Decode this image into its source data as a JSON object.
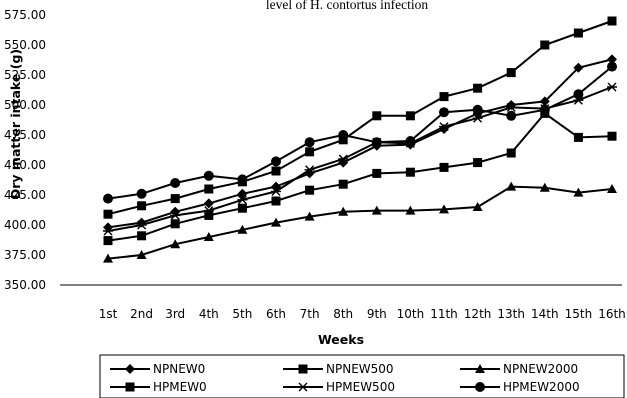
{
  "chart_data": {
    "type": "line",
    "title": "level of H. contortus infection",
    "xlabel": "Weeks",
    "ylabel": "Dry matter intake (g)",
    "ylim": [
      350,
      575
    ],
    "ytick_labels": [
      "350.00",
      "375.00",
      "400.00",
      "425.00",
      "450.00",
      "475.00",
      "500.00",
      "525.00",
      "550.00",
      "575.00"
    ],
    "categories": [
      "1st",
      "2nd",
      "3rd",
      "4th",
      "5th",
      "6th",
      "7th",
      "8th",
      "9th",
      "10th",
      "11th",
      "12th",
      "13th",
      "14th",
      "15th",
      "16th"
    ],
    "grid": false,
    "legend_position": "bottom",
    "series": [
      {
        "name": "NPNEW0",
        "marker": "diamond",
        "values": [
          398,
          402,
          411,
          418,
          426,
          432,
          443,
          452,
          466,
          467,
          480,
          493,
          500,
          503,
          531,
          538
        ]
      },
      {
        "name": "NPNEW500",
        "marker": "square",
        "values": [
          387,
          391,
          401,
          408,
          414,
          420,
          429,
          434,
          443,
          444,
          448,
          452,
          460,
          493,
          473,
          474
        ]
      },
      {
        "name": "NPNEW2000",
        "marker": "triangle",
        "values": [
          372,
          375,
          384,
          390,
          396,
          402,
          407,
          411,
          412,
          412,
          413,
          415,
          432,
          431,
          427,
          430
        ]
      },
      {
        "name": "HPMEW0",
        "marker": "square",
        "values": [
          409,
          416,
          422,
          430,
          436,
          445,
          461,
          471,
          491,
          491,
          507,
          514,
          527,
          550,
          560,
          570
        ]
      },
      {
        "name": "HPMEW500",
        "marker": "star",
        "values": [
          395,
          400,
          408,
          412,
          421,
          428,
          446,
          455,
          469,
          468,
          482,
          489,
          498,
          497,
          504,
          515
        ]
      },
      {
        "name": "HPMEW2000",
        "marker": "circle",
        "values": [
          422,
          426,
          435,
          441,
          438,
          453,
          469,
          475,
          469,
          470,
          494,
          496,
          491,
          496,
          509,
          532
        ]
      }
    ]
  }
}
